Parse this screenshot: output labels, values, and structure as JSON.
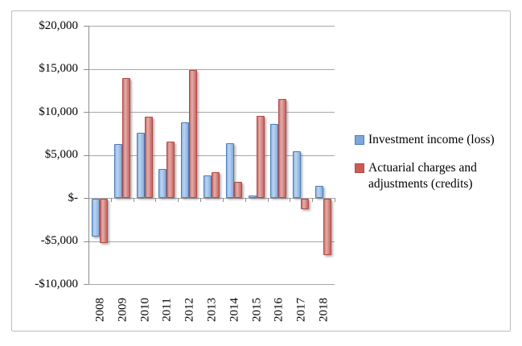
{
  "chart_data": {
    "type": "bar",
    "title": "",
    "xlabel": "",
    "ylabel": "",
    "categories": [
      "2008",
      "2009",
      "2010",
      "2011",
      "2012",
      "2013",
      "2014",
      "2015",
      "2016",
      "2017",
      "2018"
    ],
    "series": [
      {
        "name": "Investment income (loss)",
        "values": [
          -4400,
          6300,
          7600,
          3400,
          8800,
          2600,
          6400,
          300,
          8600,
          5400,
          1400
        ],
        "border_color": "#4a7ebb",
        "legend_fill": "#7da7dc",
        "fill_gradient": [
          "#8cb2e0",
          "#bcd4f0",
          "#a3c2e8",
          "#86abd9"
        ]
      },
      {
        "name": "Actuarial charges and adjustments (credits)",
        "values": [
          -5100,
          13900,
          9400,
          6500,
          14900,
          3000,
          1900,
          9500,
          11500,
          -1200,
          -6500
        ],
        "border_color": "#b04a46",
        "legend_fill": "#cc5a55",
        "fill_gradient": [
          "#cd6d69",
          "#e3aeab",
          "#d68c88",
          "#c96560"
        ]
      }
    ],
    "ylim": [
      -10000,
      20000
    ],
    "ytick_step": 5000,
    "yticks": [
      {
        "value": 20000,
        "label": "$20,000"
      },
      {
        "value": 15000,
        "label": "$15,000"
      },
      {
        "value": 10000,
        "label": "$10,000"
      },
      {
        "value": 5000,
        "label": "$5,000"
      },
      {
        "value": 0,
        "label": "$-"
      },
      {
        "value": -5000,
        "label": "-$5,000"
      },
      {
        "value": -10000,
        "label": "-$10,000"
      }
    ],
    "grid": true,
    "legend_position": "right"
  },
  "colors": {
    "background": "#ffffff",
    "gridline": "#a6a6a6",
    "axis": "#8c8c8c",
    "frame_border": "#bdbdbd"
  }
}
